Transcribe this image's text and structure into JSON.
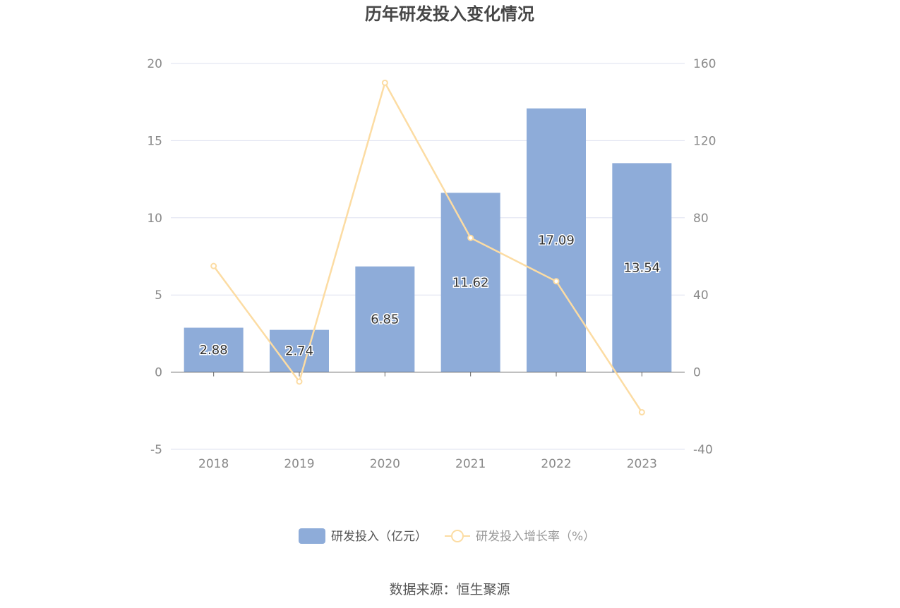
{
  "title": "历年研发投入变化情况",
  "source": "数据来源：恒生聚源",
  "colors": {
    "bar": "#8eacd9",
    "line": "#fcdca3",
    "grid": "#dde0ef",
    "axis": "#666666",
    "tick_text": "#8a8a8a",
    "legend_active": "#555555",
    "legend_inactive": "#9a9a9a"
  },
  "chart_data": {
    "type": "bar",
    "title": "历年研发投入变化情况",
    "categories": [
      "2018",
      "2019",
      "2020",
      "2021",
      "2022",
      "2023"
    ],
    "series": [
      {
        "name": "研发投入（亿元）",
        "type": "bar",
        "axis": "left",
        "values": [
          2.88,
          2.74,
          6.85,
          11.62,
          17.09,
          13.54
        ],
        "labels": [
          "2.88",
          "2.74",
          "6.85",
          "11.62",
          "17.09",
          "13.54"
        ]
      },
      {
        "name": "研发投入增长率（%）",
        "type": "line",
        "axis": "right",
        "values": [
          55.0,
          -4.9,
          150.0,
          69.6,
          47.1,
          -20.8
        ]
      }
    ],
    "y_left": {
      "ylim": [
        -5,
        20
      ],
      "ticks": [
        "-5",
        "0",
        "5",
        "10",
        "15",
        "20"
      ]
    },
    "y_right": {
      "ylim": [
        -40,
        160
      ],
      "ticks": [
        "-40",
        "0",
        "40",
        "80",
        "120",
        "160"
      ]
    },
    "grid": true,
    "legend": "bottom"
  }
}
